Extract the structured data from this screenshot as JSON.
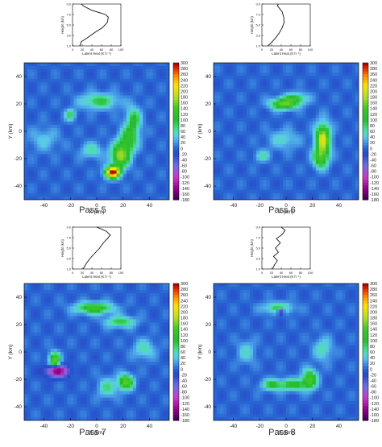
{
  "chart_data": [
    {
      "type": "heatmap",
      "pass_label": "Pass 5",
      "xlabel": "X (km)",
      "ylabel": "Y (km)",
      "xlim": [
        -55,
        55
      ],
      "ylim": [
        -50,
        50
      ],
      "xticks": [
        -40,
        -20,
        0,
        20,
        40
      ],
      "yticks": [
        -40,
        -20,
        0,
        20,
        40
      ],
      "colorbar_ticks": [
        300,
        280,
        260,
        240,
        220,
        200,
        180,
        160,
        140,
        120,
        100,
        80,
        60,
        40,
        20,
        0,
        -20,
        -40,
        -60,
        -80,
        -100,
        -120,
        -140,
        -160,
        -180
      ],
      "colorbar_range": [
        -180,
        300
      ],
      "blobs": [
        {
          "x": 12,
          "y": -30,
          "v": 290,
          "sx": 4,
          "sy": 3
        },
        {
          "x": 18,
          "y": -18,
          "v": 170,
          "sx": 5,
          "sy": 6
        },
        {
          "x": 24,
          "y": -6,
          "v": 110,
          "sx": 5,
          "sy": 6
        },
        {
          "x": 28,
          "y": 8,
          "v": 100,
          "sx": 4,
          "sy": 7
        },
        {
          "x": 2,
          "y": 22,
          "v": 90,
          "sx": 10,
          "sy": 4
        },
        {
          "x": -20,
          "y": 12,
          "v": 80,
          "sx": 3,
          "sy": 3
        },
        {
          "x": -4,
          "y": -14,
          "v": 60,
          "sx": 6,
          "sy": 4
        },
        {
          "x": -40,
          "y": -6,
          "v": 40,
          "sx": 8,
          "sy": 6
        }
      ],
      "profile": {
        "xlabel": "Latent Heat (K h⁻¹)",
        "ylabel": "Height (km)",
        "xlim": [
          0,
          100
        ],
        "ylim": [
          1,
          9
        ],
        "xticks": [
          0,
          20,
          40,
          60,
          80,
          100
        ],
        "yticks": [
          1.0,
          3.0,
          5.0,
          7.0,
          9.0
        ],
        "x": [
          15,
          18,
          30,
          45,
          62,
          72,
          74,
          68,
          40,
          25,
          18
        ],
        "y": [
          1.0,
          1.8,
          2.5,
          3.5,
          4.5,
          5.5,
          6.5,
          7.0,
          7.8,
          8.5,
          9.0
        ]
      }
    },
    {
      "type": "heatmap",
      "pass_label": "Pass 6",
      "xlabel": "X (km)",
      "ylabel": "Y (km)",
      "xlim": [
        -55,
        55
      ],
      "ylim": [
        -50,
        50
      ],
      "xticks": [
        -40,
        -20,
        0,
        20,
        40
      ],
      "yticks": [
        -40,
        -20,
        0,
        20,
        40
      ],
      "colorbar_ticks": [
        300,
        280,
        260,
        240,
        220,
        200,
        180,
        160,
        140,
        120,
        100,
        80,
        60,
        40,
        20,
        0,
        -20,
        -40,
        -60,
        -80,
        -100,
        -120,
        -140,
        -160,
        -180
      ],
      "colorbar_range": [
        -180,
        300
      ],
      "blobs": [
        {
          "x": 28,
          "y": -6,
          "v": 200,
          "sx": 4,
          "sy": 8
        },
        {
          "x": 26,
          "y": -20,
          "v": 120,
          "sx": 4,
          "sy": 5
        },
        {
          "x": -2,
          "y": 20,
          "v": 150,
          "sx": 7,
          "sy": 3
        },
        {
          "x": 8,
          "y": 24,
          "v": 90,
          "sx": 6,
          "sy": 3
        },
        {
          "x": -18,
          "y": -18,
          "v": 60,
          "sx": 4,
          "sy": 3
        },
        {
          "x": -2,
          "y": -6,
          "v": 50,
          "sx": 8,
          "sy": 5
        }
      ],
      "profile": {
        "xlabel": "Latent Heat (K h⁻¹)",
        "ylabel": "Height (km)",
        "xlim": [
          0,
          100
        ],
        "ylim": [
          1,
          9
        ],
        "xticks": [
          0,
          20,
          40,
          60,
          80,
          100
        ],
        "yticks": [
          1.0,
          3.0,
          5.0,
          7.0,
          9.0
        ],
        "x": [
          12,
          18,
          28,
          36,
          42,
          46,
          45,
          42,
          36,
          32,
          34
        ],
        "y": [
          1.0,
          1.5,
          2.5,
          3.5,
          4.5,
          5.5,
          6.5,
          7.5,
          8.2,
          8.7,
          9.0
        ]
      }
    },
    {
      "type": "heatmap",
      "pass_label": "Pass 7",
      "xlabel": "X (km)",
      "ylabel": "Y (km)",
      "xlim": [
        -55,
        55
      ],
      "ylim": [
        -50,
        50
      ],
      "xticks": [
        -40,
        -20,
        0,
        20,
        40
      ],
      "yticks": [
        -40,
        -20,
        0,
        20,
        40
      ],
      "colorbar_ticks": [
        300,
        280,
        260,
        240,
        220,
        200,
        180,
        160,
        140,
        120,
        100,
        80,
        60,
        40,
        20,
        0,
        -20,
        -40,
        -60,
        -80,
        -100,
        -120,
        -140,
        -160,
        -180
      ],
      "colorbar_range": [
        -180,
        300
      ],
      "blobs": [
        {
          "x": -32,
          "y": -6,
          "v": 150,
          "sx": 3,
          "sy": 4
        },
        {
          "x": -30,
          "y": -14,
          "v": -150,
          "sx": 6,
          "sy": 3
        },
        {
          "x": 22,
          "y": -22,
          "v": 150,
          "sx": 4,
          "sy": 4
        },
        {
          "x": -2,
          "y": 32,
          "v": 130,
          "sx": 10,
          "sy": 3
        },
        {
          "x": 18,
          "y": 22,
          "v": 90,
          "sx": 8,
          "sy": 3
        },
        {
          "x": 8,
          "y": -26,
          "v": 70,
          "sx": 5,
          "sy": 5
        },
        {
          "x": 36,
          "y": 2,
          "v": 60,
          "sx": 6,
          "sy": 5
        }
      ],
      "profile": {
        "xlabel": "Latent Heat (K h⁻¹)",
        "ylabel": "Height (km)",
        "xlim": [
          0,
          100
        ],
        "ylim": [
          1,
          9
        ],
        "xticks": [
          0,
          20,
          40,
          60,
          80,
          100
        ],
        "yticks": [
          1.0,
          3.0,
          5.0,
          7.0,
          9.0
        ],
        "x": [
          22,
          28,
          36,
          46,
          56,
          64,
          72,
          78,
          70,
          58,
          50
        ],
        "y": [
          1.0,
          2.0,
          3.0,
          4.0,
          5.0,
          6.0,
          6.8,
          7.5,
          8.2,
          8.7,
          9.0
        ]
      }
    },
    {
      "type": "heatmap",
      "pass_label": "Pass 8",
      "xlabel": "X (km)",
      "ylabel": "Y (km)",
      "xlim": [
        -55,
        55
      ],
      "ylim": [
        -50,
        50
      ],
      "xticks": [
        -40,
        -20,
        0,
        20,
        40
      ],
      "yticks": [
        -40,
        -20,
        0,
        20,
        40
      ],
      "colorbar_ticks": [
        300,
        280,
        260,
        240,
        220,
        200,
        180,
        160,
        140,
        120,
        100,
        80,
        60,
        40,
        20,
        0,
        -20,
        -40,
        -60,
        -80,
        -100,
        -120,
        -140,
        -160,
        -180
      ],
      "colorbar_range": [
        -180,
        300
      ],
      "blobs": [
        {
          "x": 18,
          "y": -20,
          "v": 140,
          "sx": 4,
          "sy": 5
        },
        {
          "x": 6,
          "y": -24,
          "v": 110,
          "sx": 6,
          "sy": 3
        },
        {
          "x": -10,
          "y": -24,
          "v": 100,
          "sx": 6,
          "sy": 3
        },
        {
          "x": -6,
          "y": 32,
          "v": 90,
          "sx": 8,
          "sy": 3
        },
        {
          "x": 28,
          "y": 2,
          "v": 60,
          "sx": 5,
          "sy": 6
        },
        {
          "x": -30,
          "y": 0,
          "v": 50,
          "sx": 5,
          "sy": 6
        },
        {
          "x": -4,
          "y": 30,
          "v": -110,
          "sx": 2,
          "sy": 2
        }
      ],
      "profile": {
        "xlabel": "Latent Heat (K h⁻¹)",
        "ylabel": "Height (km)",
        "xlim": [
          0,
          100
        ],
        "ylim": [
          1,
          9
        ],
        "xticks": [
          0,
          20,
          40,
          60,
          80,
          100
        ],
        "yticks": [
          1.0,
          3.0,
          5.0,
          7.0,
          9.0
        ],
        "x": [
          22,
          26,
          32,
          24,
          34,
          28,
          38,
          30,
          42,
          48,
          40
        ],
        "y": [
          1.0,
          1.8,
          2.6,
          3.4,
          4.2,
          5.0,
          6.0,
          6.8,
          7.6,
          8.4,
          9.0
        ]
      }
    }
  ]
}
